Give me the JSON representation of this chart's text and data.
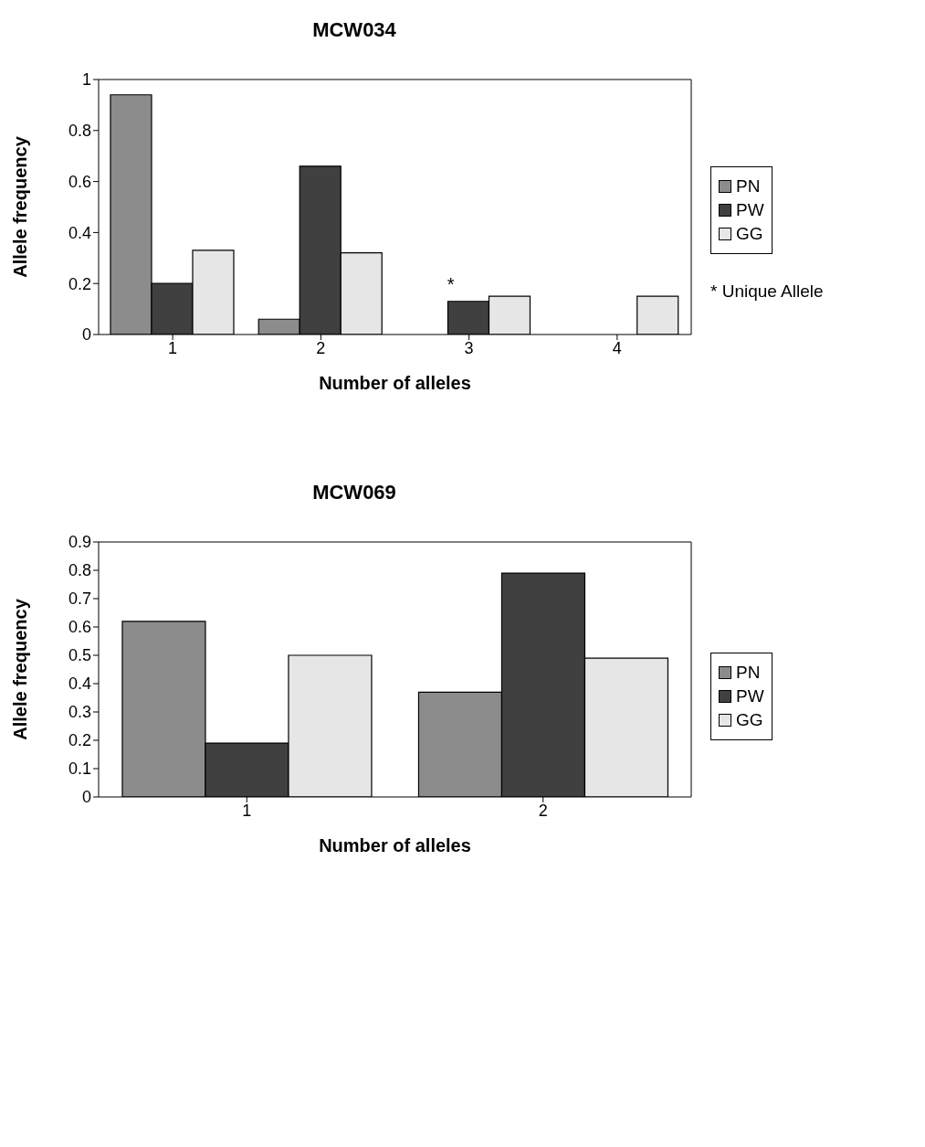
{
  "chart_data": [
    {
      "type": "bar",
      "title": "MCW034",
      "xlabel": "Number of alleles",
      "ylabel": "Allele frequency",
      "categories": [
        "1",
        "2",
        "3",
        "4"
      ],
      "series": [
        {
          "name": "PN",
          "color": "#8c8c8c",
          "values": [
            0.94,
            0.06,
            null,
            null
          ]
        },
        {
          "name": "PW",
          "color": "#404040",
          "values": [
            0.2,
            0.66,
            0.13,
            null
          ]
        },
        {
          "name": "GG",
          "color": "#e6e6e6",
          "values": [
            0.33,
            0.32,
            0.15,
            0.15
          ]
        }
      ],
      "ylim": [
        0,
        1
      ],
      "yticks": [
        0,
        0.2,
        0.4,
        0.6,
        0.8,
        1
      ],
      "grid": false,
      "legend": "right",
      "annotations": [
        {
          "text": "*",
          "x": "3",
          "y": 0.13
        },
        "* Unique Allele"
      ]
    },
    {
      "type": "bar",
      "title": "MCW069",
      "xlabel": "Number of alleles",
      "ylabel": "Allele frequency",
      "categories": [
        "1",
        "2"
      ],
      "series": [
        {
          "name": "PN",
          "color": "#8c8c8c",
          "values": [
            0.62,
            0.37
          ]
        },
        {
          "name": "PW",
          "color": "#404040",
          "values": [
            0.19,
            0.79
          ]
        },
        {
          "name": "GG",
          "color": "#e6e6e6",
          "values": [
            0.5,
            0.49
          ]
        }
      ],
      "ylim": [
        0,
        0.9
      ],
      "yticks": [
        0,
        0.1,
        0.2,
        0.3,
        0.4,
        0.5,
        0.6,
        0.7,
        0.8,
        0.9
      ],
      "grid": false,
      "legend": "right"
    }
  ]
}
